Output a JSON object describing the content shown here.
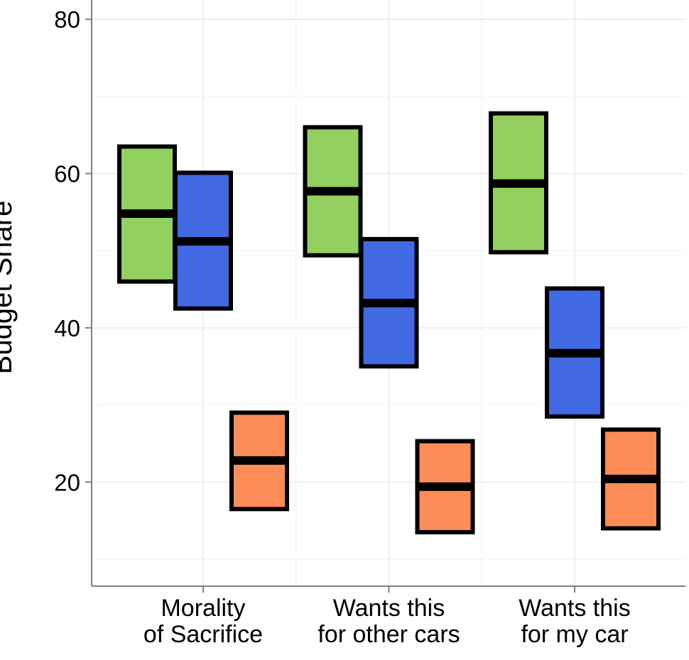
{
  "chart_data": {
    "type": "crossbar",
    "ylabel": "Budget Share",
    "xlabel": "",
    "ylim": [
      6.5,
      82.5
    ],
    "yticks": [
      20,
      40,
      60,
      80
    ],
    "grid": true,
    "legend": "none",
    "categories": [
      {
        "lines": [
          "Morality",
          "of Sacrifice"
        ]
      },
      {
        "lines": [
          "Wants this",
          "for other cars"
        ]
      },
      {
        "lines": [
          "Wants this",
          "for my car"
        ]
      }
    ],
    "series": [
      {
        "color": "#92D060",
        "mean": [
          54.8,
          57.7,
          58.7
        ],
        "lower": [
          46.0,
          49.4,
          49.8
        ],
        "upper": [
          63.5,
          66.0,
          67.8
        ]
      },
      {
        "color": "#4169E1",
        "mean": [
          51.2,
          43.2,
          36.7
        ],
        "lower": [
          42.5,
          35.0,
          28.5
        ],
        "upper": [
          60.1,
          51.5,
          45.1
        ]
      },
      {
        "color": "#FD8C58",
        "mean": [
          22.8,
          19.4,
          20.4
        ],
        "lower": [
          16.5,
          13.5,
          14.0
        ],
        "upper": [
          29.0,
          25.3,
          26.8
        ]
      }
    ]
  }
}
